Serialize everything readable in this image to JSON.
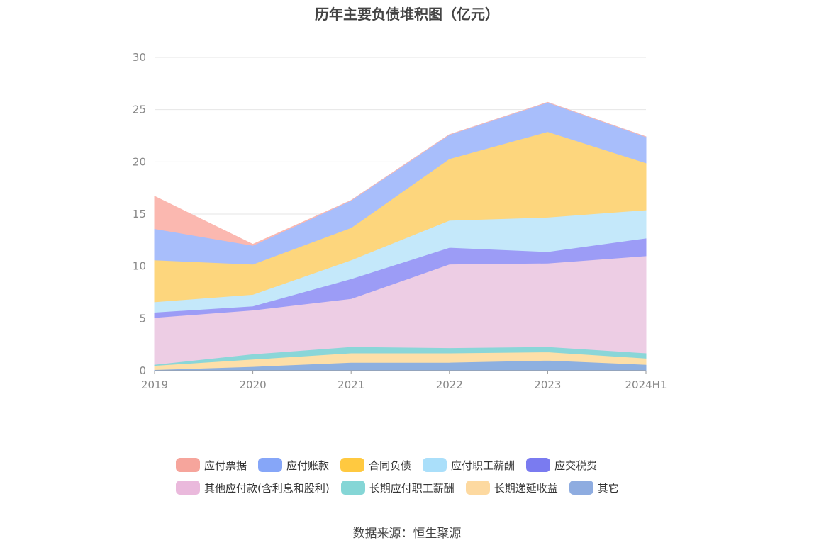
{
  "chart_data": {
    "type": "area",
    "stacked": true,
    "title": "历年主要负债堆积图（亿元）",
    "categories": [
      "2019",
      "2020",
      "2021",
      "2022",
      "2023",
      "2024H1"
    ],
    "ylim": [
      0,
      30
    ],
    "yticks": [
      "0",
      "5",
      "10",
      "15",
      "20",
      "25",
      "30"
    ],
    "grid": true,
    "legend_position": "bottom",
    "series": [
      {
        "name": "其它",
        "color": "#8EB0E0",
        "values": [
          0.1,
          0.4,
          0.8,
          0.8,
          1.0,
          0.6
        ]
      },
      {
        "name": "长期递延收益",
        "color": "#FDDFA8",
        "values": [
          0.4,
          0.7,
          0.9,
          0.9,
          0.8,
          0.6
        ]
      },
      {
        "name": "长期应付职工薪酬",
        "color": "#8AD6D8",
        "values": [
          0.1,
          0.5,
          0.6,
          0.5,
          0.5,
          0.5
        ]
      },
      {
        "name": "其他应付款(含利息和股利)",
        "color": "#EDCDE4",
        "values": [
          4.5,
          4.2,
          4.6,
          8.0,
          8.0,
          9.3
        ]
      },
      {
        "name": "应交税费",
        "color": "#9C9CF6",
        "values": [
          0.5,
          0.4,
          1.9,
          1.6,
          1.1,
          1.7
        ]
      },
      {
        "name": "应付职工薪酬",
        "color": "#C4E8FA",
        "values": [
          1.0,
          1.1,
          1.8,
          2.6,
          3.3,
          2.7
        ]
      },
      {
        "name": "合同负债",
        "color": "#FDD67D",
        "values": [
          4.0,
          2.9,
          3.1,
          5.9,
          8.2,
          4.5
        ]
      },
      {
        "name": "应付账款",
        "color": "#A8BEFB",
        "values": [
          3.0,
          1.8,
          2.6,
          2.3,
          2.8,
          2.5
        ]
      },
      {
        "name": "应付票据",
        "color": "#FBB8B0",
        "values": [
          3.1,
          0.1,
          0.0,
          0.0,
          0.0,
          0.0
        ]
      }
    ]
  },
  "legend": {
    "row1": [
      {
        "label": "应付票据",
        "color": "#F6A59C"
      },
      {
        "label": "应付账款",
        "color": "#86A6F8"
      },
      {
        "label": "合同负债",
        "color": "#FFC940"
      },
      {
        "label": "应付职工薪酬",
        "color": "#AADFFA"
      },
      {
        "label": "应交税费",
        "color": "#7A7BF0"
      }
    ],
    "row2": [
      {
        "label": "其他应付款(含利息和股利)",
        "color": "#EAB9DC"
      },
      {
        "label": "长期应付职工薪酬",
        "color": "#85D6D6"
      },
      {
        "label": "长期递延收益",
        "color": "#FDD9A0"
      },
      {
        "label": "其它",
        "color": "#8EACE0"
      }
    ]
  },
  "source": "数据来源：恒生聚源"
}
